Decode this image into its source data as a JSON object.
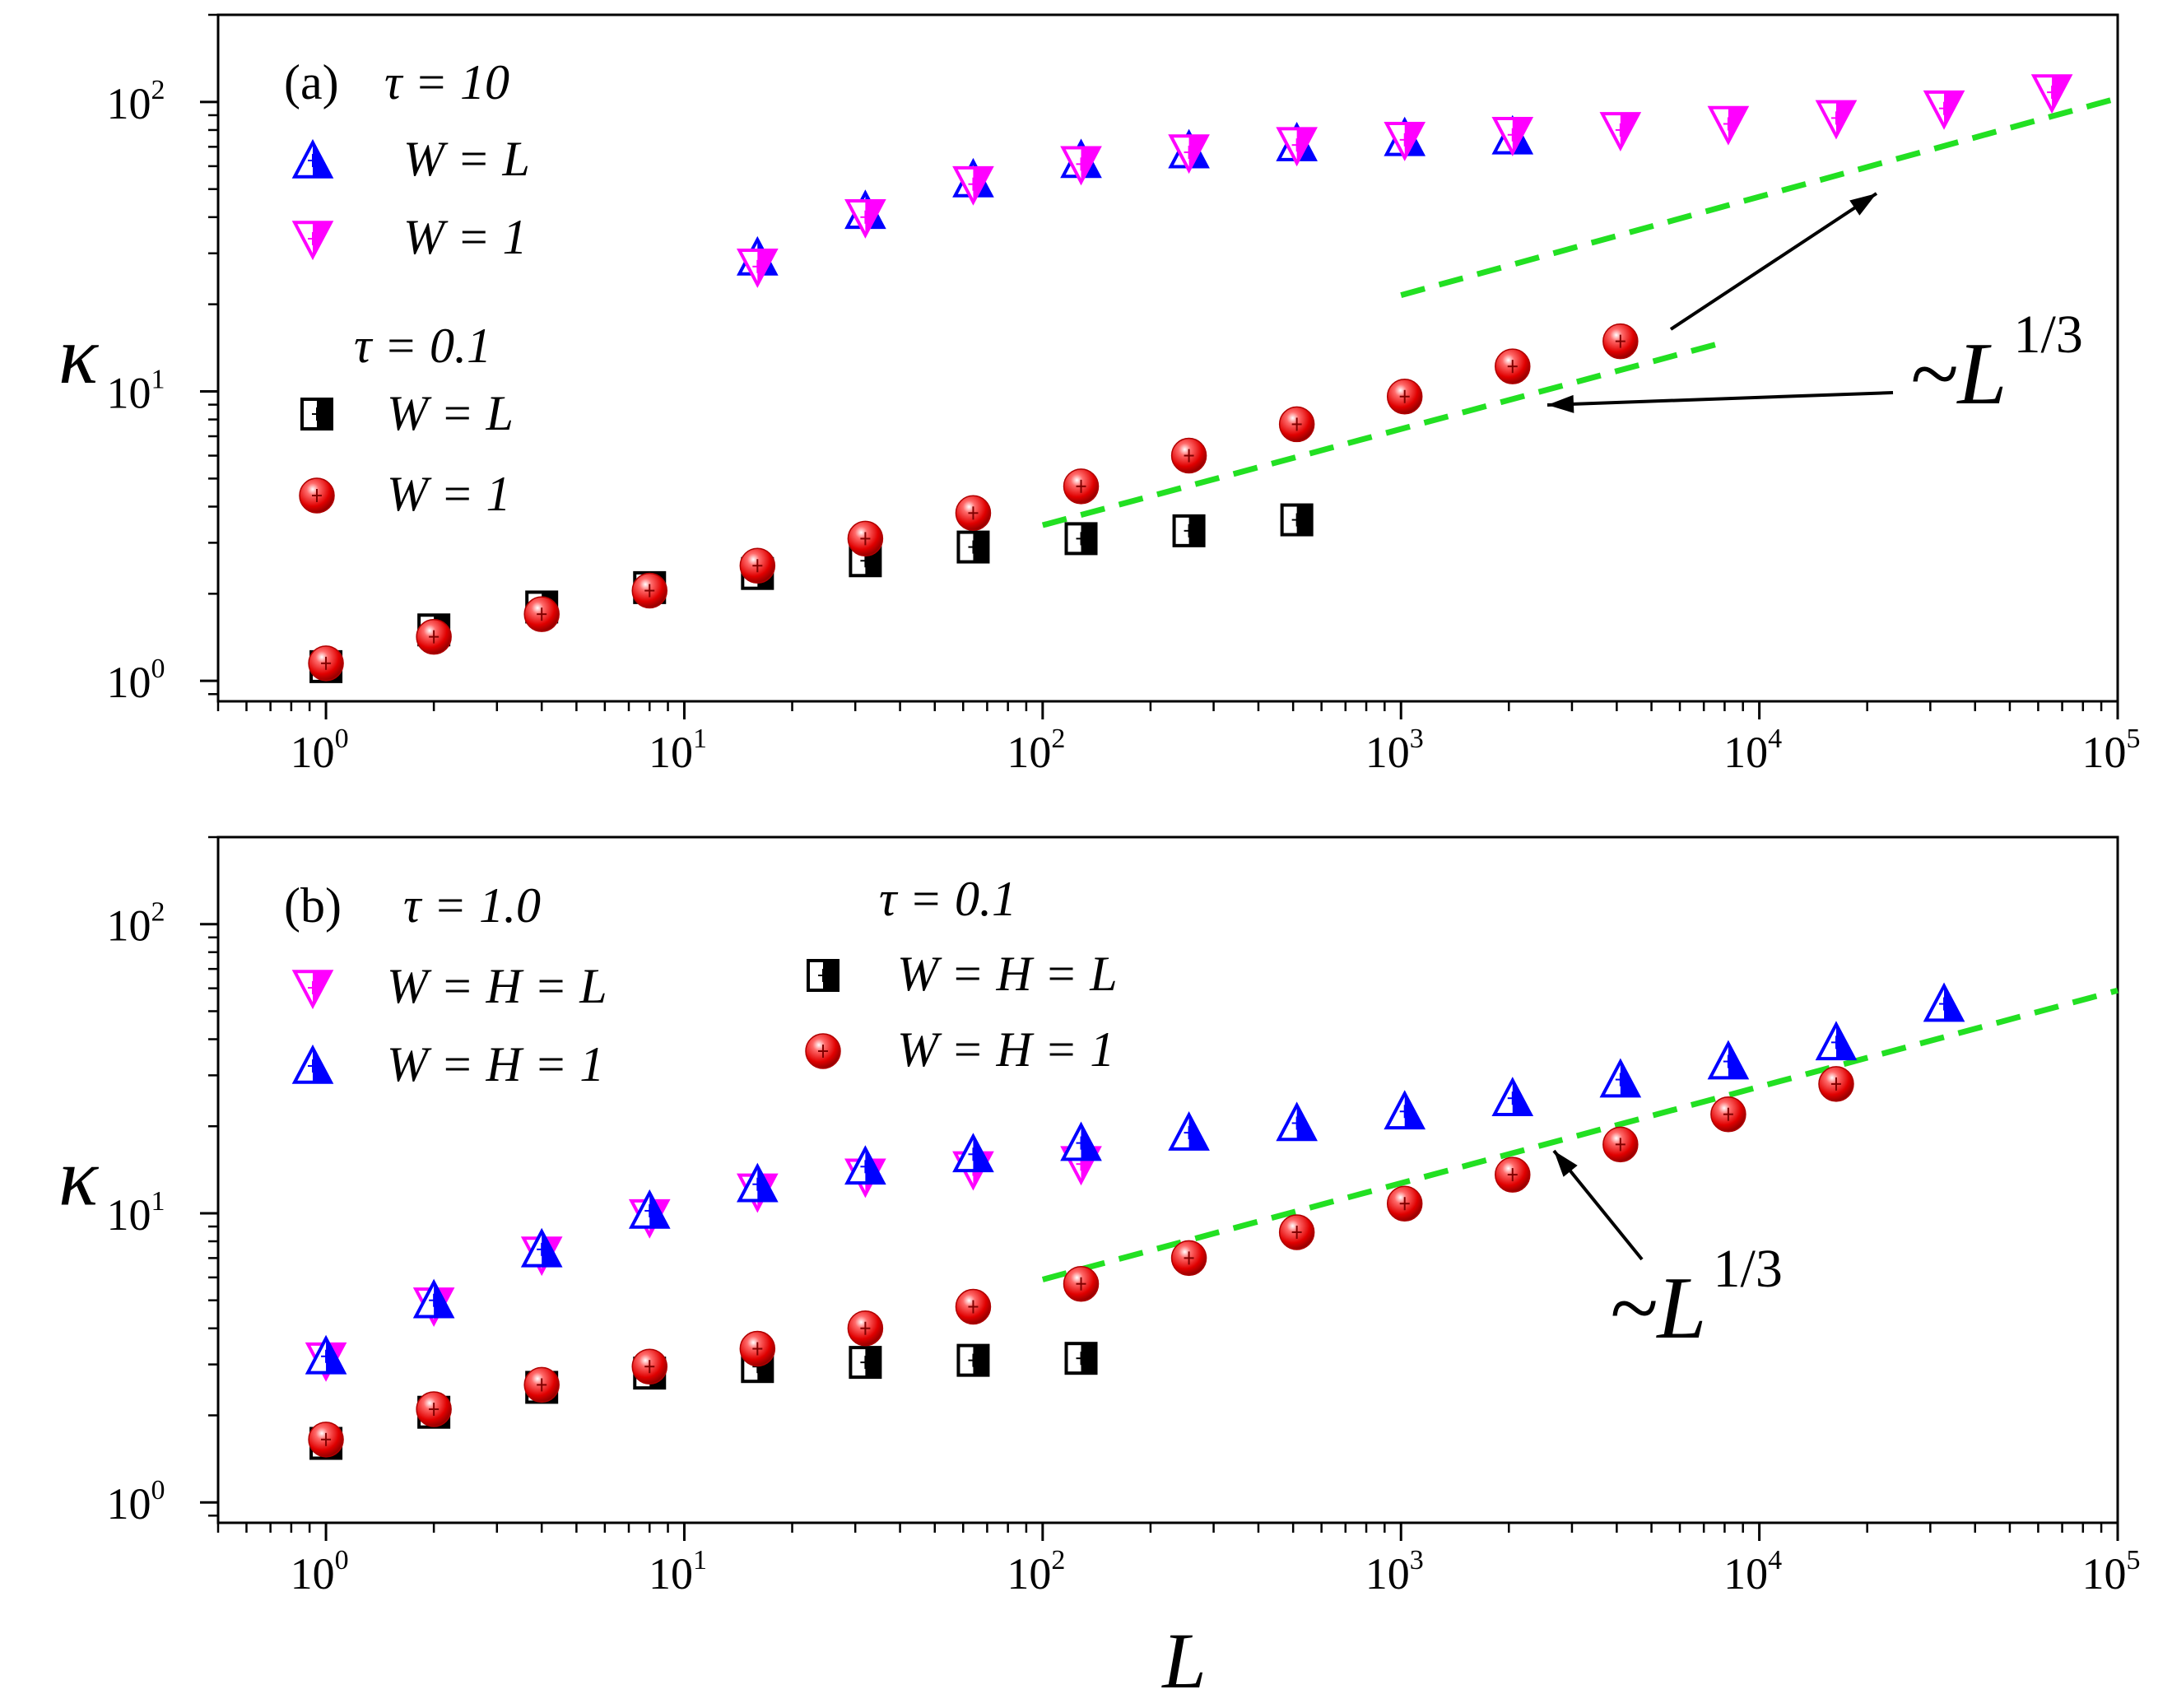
{
  "chart_data": [
    {
      "type": "scatter",
      "panel_label": "(a)",
      "xscale": "log",
      "yscale": "log",
      "xlim": [
        0.5,
        100000
      ],
      "ylim": [
        0.85,
        200
      ],
      "ylabel": "κ",
      "xlabel": "",
      "x_tick_labels": [
        "10^0",
        "10^1",
        "10^2",
        "10^3",
        "10^4",
        "10^5"
      ],
      "y_tick_labels": [
        "10^0",
        "10^1",
        "10^2"
      ],
      "legend_groups": [
        {
          "title": "τ = 10",
          "entries": [
            "W = L",
            "W = 1"
          ]
        },
        {
          "title": "τ = 0.1",
          "entries": [
            "W = L",
            "W = 1"
          ]
        }
      ],
      "series": [
        {
          "name": "τ = 10, W = L",
          "marker": "triangle-up",
          "color": "#0000ff",
          "x": [
            16,
            32,
            64,
            128,
            256,
            512,
            1024,
            2048
          ],
          "y": [
            29,
            42,
            54,
            63,
            68,
            72,
            75,
            76
          ]
        },
        {
          "name": "τ = 10, W = 1",
          "marker": "triangle-down",
          "color": "#ff00ff",
          "x": [
            16,
            32,
            64,
            128,
            256,
            512,
            1024,
            2048,
            4096,
            8192,
            16384,
            32768,
            65536
          ],
          "y": [
            27,
            40,
            52,
            61,
            67,
            71,
            74,
            77,
            80,
            84,
            88,
            95,
            108
          ]
        },
        {
          "name": "τ = 0.1, W = L",
          "marker": "half-square",
          "color": "#000000",
          "x": [
            1,
            2,
            4,
            8,
            16,
            32,
            64,
            128,
            256,
            512
          ],
          "y": [
            1.12,
            1.5,
            1.8,
            2.1,
            2.35,
            2.6,
            2.9,
            3.1,
            3.3,
            3.6
          ]
        },
        {
          "name": "τ = 0.1, W = 1",
          "marker": "sphere",
          "color": "#e01010",
          "x": [
            1,
            2,
            4,
            8,
            16,
            32,
            64,
            128,
            256,
            512,
            1024,
            2048,
            4096
          ],
          "y": [
            1.15,
            1.42,
            1.7,
            2.05,
            2.5,
            3.1,
            3.8,
            4.7,
            6.0,
            7.7,
            9.6,
            12.2,
            14.9
          ]
        }
      ],
      "fit_lines": [
        {
          "x": [
            1000,
            100000
          ],
          "y": [
            21.5,
            103
          ],
          "color": "#22e022"
        },
        {
          "x": [
            100,
            8000
          ],
          "y": [
            3.45,
            14.8
          ],
          "color": "#22e022"
        }
      ],
      "annotation": {
        "text": "~L",
        "superscript": "1/3"
      }
    },
    {
      "type": "scatter",
      "panel_label": "(b)",
      "xscale": "log",
      "yscale": "log",
      "xlim": [
        0.5,
        100000
      ],
      "ylim": [
        0.85,
        200
      ],
      "ylabel": "κ",
      "xlabel": "L",
      "x_tick_labels": [
        "10^0",
        "10^1",
        "10^2",
        "10^3",
        "10^4",
        "10^5"
      ],
      "y_tick_labels": [
        "10^0",
        "10^1",
        "10^2"
      ],
      "legend_groups": [
        {
          "title": "τ = 1.0",
          "entries": [
            "W = H = L",
            "W = H = 1"
          ]
        },
        {
          "title": "τ = 0.1",
          "entries": [
            "W = H = L",
            "W = H = 1"
          ]
        }
      ],
      "series": [
        {
          "name": "τ = 1.0, W = H = L",
          "marker": "triangle-down",
          "color": "#ff00ff",
          "x": [
            1,
            2,
            4,
            8,
            16,
            32,
            64,
            128
          ],
          "y": [
            3.1,
            4.8,
            7.2,
            9.7,
            11.9,
            13.4,
            14.2,
            14.8
          ]
        },
        {
          "name": "τ = 1.0, W = H = 1",
          "marker": "triangle-up",
          "color": "#0000ff",
          "x": [
            1,
            2,
            4,
            8,
            16,
            32,
            64,
            128,
            256,
            512,
            1024,
            2048,
            4096,
            8192,
            16384,
            32768
          ],
          "y": [
            3.2,
            5.0,
            7.5,
            10.2,
            12.6,
            14.5,
            16.0,
            17.5,
            19.0,
            20.5,
            22.5,
            25.0,
            29.0,
            33.5,
            39.0,
            53.0
          ]
        },
        {
          "name": "τ = 0.1, W = H = L",
          "marker": "half-square",
          "color": "#000000",
          "x": [
            1,
            2,
            4,
            8,
            16,
            32,
            64,
            128
          ],
          "y": [
            1.6,
            2.05,
            2.5,
            2.8,
            2.95,
            3.05,
            3.1,
            3.15
          ]
        },
        {
          "name": "τ = 0.1, W = H = 1",
          "marker": "sphere",
          "color": "#e01010",
          "x": [
            1,
            2,
            4,
            8,
            16,
            32,
            64,
            128,
            256,
            512,
            1024,
            2048,
            4096,
            8192,
            16384
          ],
          "y": [
            1.65,
            2.1,
            2.55,
            2.95,
            3.4,
            4.0,
            4.75,
            5.7,
            7.0,
            8.6,
            10.8,
            13.6,
            17.3,
            22.0,
            28.0
          ]
        }
      ],
      "fit_lines": [
        {
          "x": [
            100,
            100000
          ],
          "y": [
            5.9,
            59
          ],
          "color": "#22e022"
        }
      ],
      "annotation": {
        "text": "~L",
        "superscript": "1/3"
      }
    }
  ]
}
